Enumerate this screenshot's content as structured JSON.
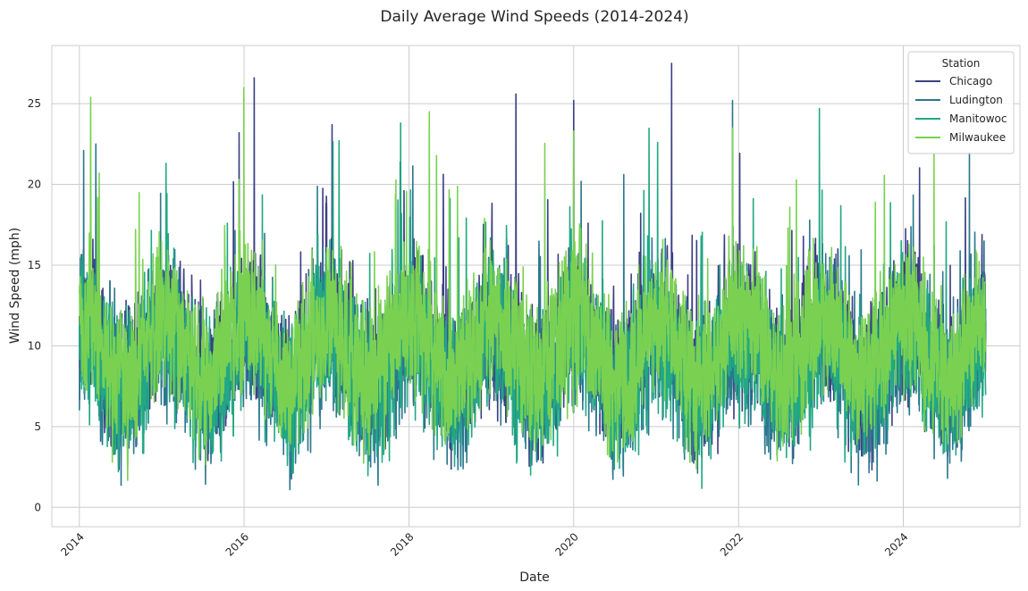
{
  "chart_data": {
    "type": "line",
    "title": "Daily Average Wind Speeds (2014-2024)",
    "xlabel": "Date",
    "ylabel": "Wind Speed (mph)",
    "x_range": [
      "2014-01-01",
      "2024-12-31"
    ],
    "xlim": [
      "2013-09-01",
      "2025-06-01"
    ],
    "x_tick_labels": [
      "2014",
      "2016",
      "2018",
      "2020",
      "2022",
      "2024"
    ],
    "ylim": [
      -1.2,
      28.6
    ],
    "y_ticks": [
      0,
      5,
      10,
      15,
      20,
      25
    ],
    "grid": true,
    "legend": {
      "title": "Station",
      "placement": "top-right"
    },
    "series": [
      {
        "name": "Chicago",
        "color": "#3b3f83",
        "mean": 9.8,
        "min": 0.5,
        "max": 27.5,
        "peaks": [
          [
            "2016-02-15",
            26.6
          ],
          [
            "2019-04-20",
            25.6
          ],
          [
            "2020-01-01",
            25.2
          ],
          [
            "2021-03-10",
            27.5
          ],
          [
            "2015-12-10",
            23.2
          ],
          [
            "2017-01-25",
            23.7
          ]
        ]
      },
      {
        "name": "Ludington",
        "color": "#2b788e",
        "mean": 8.7,
        "min": 0.3,
        "max": 25.2,
        "peaks": [
          [
            "2014-03-15",
            22.5
          ],
          [
            "2021-12-05",
            25.2
          ],
          [
            "2024-10-20",
            22.0
          ],
          [
            "2014-01-20",
            22.1
          ]
        ]
      },
      {
        "name": "Manitowoc",
        "color": "#22a884",
        "mean": 8.9,
        "min": 0.1,
        "max": 24.7,
        "peaks": [
          [
            "2017-11-25",
            23.8
          ],
          [
            "2022-12-25",
            24.7
          ],
          [
            "2017-02-25",
            22.7
          ],
          [
            "2015-01-20",
            21.3
          ]
        ]
      },
      {
        "name": "Milwaukee",
        "color": "#7ad151",
        "mean": 9.9,
        "min": 0.8,
        "max": 26.0,
        "peaks": [
          [
            "2014-02-20",
            25.4
          ],
          [
            "2015-12-31",
            26.0
          ],
          [
            "2018-04-01",
            24.5
          ],
          [
            "2021-12-05",
            23.5
          ],
          [
            "2020-01-01",
            23.3
          ]
        ]
      }
    ]
  }
}
